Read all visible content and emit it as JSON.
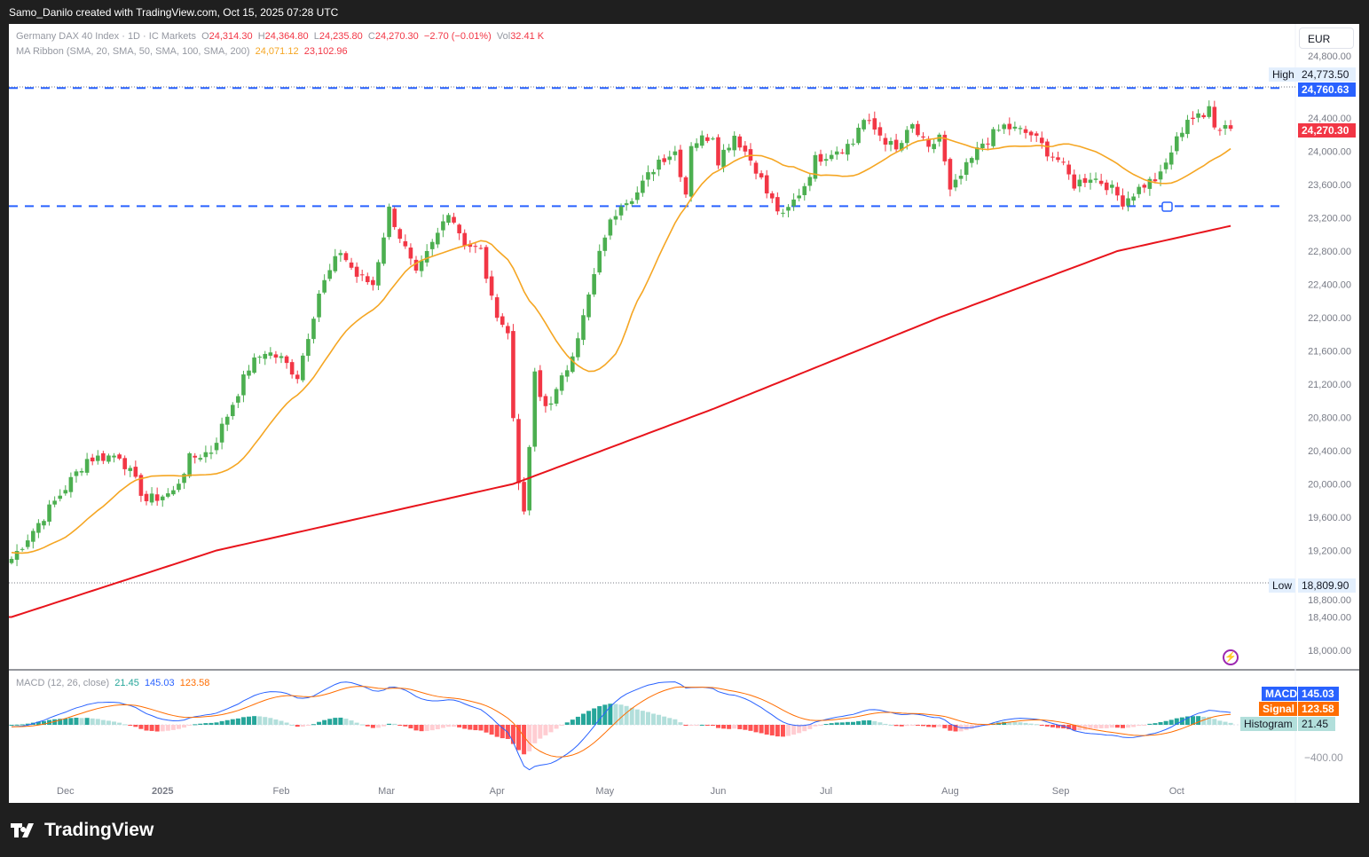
{
  "attribution": "Samo_Danilo created with TradingView.com, Oct 15, 2025 07:28 UTC",
  "brand": "TradingView",
  "currency_button": "EUR",
  "legend": {
    "symbol": "Germany DAX 40 Index · 1D · IC Markets",
    "o_label": "O",
    "o": "24,314.30",
    "h_label": "H",
    "h": "24,364.80",
    "l_label": "L",
    "l": "24,235.80",
    "c_label": "C",
    "c": "24,270.30",
    "change": "−2.70 (−0.01%)",
    "vol_label": "Vol",
    "vol": "32.41 K",
    "ma_label": "MA Ribbon (SMA, 20, SMA, 50, SMA, 100, SMA, 200)",
    "ma20": "24,071.12",
    "ma200": "23,102.96",
    "macd_label": "MACD (12, 26, close)",
    "macd_hist": "21.45",
    "macd_val": "145.03",
    "macd_signal": "123.58"
  },
  "price_tags": {
    "high_label": "High",
    "high": "24,773.50",
    "level": "24,760.63",
    "last": "24,270.30",
    "low_label": "Low",
    "low": "18,809.90",
    "macd_label": "MACD",
    "macd": "145.03",
    "signal_label": "Signal",
    "signal": "123.58",
    "hist_label": "Histogram",
    "hist": "21.45",
    "macd_axis": "−400.00"
  },
  "colors": {
    "up": "#4caf50",
    "down": "#f23645",
    "ma20": "#f5a623",
    "ma200": "#e8141c",
    "level": "#2962ff",
    "macd": "#2962ff",
    "signal": "#ff6d00"
  },
  "chart_data": {
    "type": "candlestick",
    "title": "Germany DAX 40 Index · 1D · IC Markets",
    "ylim": [
      17800,
      24900
    ],
    "y_ticks": [
      "24,800.00",
      "24,400.00",
      "24,000.00",
      "23,600.00",
      "23,200.00",
      "22,800.00",
      "22,400.00",
      "22,000.00",
      "21,600.00",
      "21,200.00",
      "20,800.00",
      "20,400.00",
      "20,000.00",
      "19,600.00",
      "19,200.00",
      "18,800.00",
      "18,400.00",
      "18,000.00"
    ],
    "y_tick_values": [
      24800,
      24400,
      24000,
      23600,
      23200,
      22800,
      22400,
      22000,
      21600,
      21200,
      20800,
      20400,
      20000,
      19600,
      19200,
      18800,
      18400,
      18000
    ],
    "x_ticks": [
      {
        "label": "Dec",
        "day": 10
      },
      {
        "label": "2025",
        "day": 28
      },
      {
        "label": "Feb",
        "day": 50
      },
      {
        "label": "Mar",
        "day": 69.5
      },
      {
        "label": "Apr",
        "day": 90
      },
      {
        "label": "May",
        "day": 110
      },
      {
        "label": "Jun",
        "day": 131
      },
      {
        "label": "Jul",
        "day": 151
      },
      {
        "label": "Aug",
        "day": 174
      },
      {
        "label": "Sep",
        "day": 194.5
      },
      {
        "label": "Oct",
        "day": 216
      }
    ],
    "close_path": [
      [
        0,
        19100
      ],
      [
        14,
        20300
      ],
      [
        20,
        20350
      ],
      [
        25,
        19800
      ],
      [
        30,
        19900
      ],
      [
        33,
        20300
      ],
      [
        37,
        20400
      ],
      [
        44,
        21400
      ],
      [
        47,
        21600
      ],
      [
        50,
        21500
      ],
      [
        53,
        21300
      ],
      [
        57,
        22300
      ],
      [
        61,
        22800
      ],
      [
        64,
        22500
      ],
      [
        67,
        22400
      ],
      [
        70,
        23300
      ],
      [
        75,
        22500
      ],
      [
        79,
        23000
      ],
      [
        81,
        23300
      ],
      [
        84,
        22900
      ],
      [
        87,
        22800
      ],
      [
        89,
        22200
      ],
      [
        92,
        21800
      ],
      [
        93.5,
        20300
      ],
      [
        95,
        19600
      ],
      [
        97,
        21300
      ],
      [
        98.5,
        20900
      ],
      [
        101,
        21100
      ],
      [
        103,
        21400
      ],
      [
        106,
        22000
      ],
      [
        108,
        22500
      ],
      [
        110,
        23000
      ],
      [
        113,
        23400
      ],
      [
        116,
        23500
      ],
      [
        120,
        23900
      ],
      [
        123,
        24000
      ],
      [
        125,
        23500
      ],
      [
        126,
        24100
      ],
      [
        130,
        24200
      ],
      [
        131,
        23900
      ],
      [
        134,
        24200
      ],
      [
        138,
        23800
      ],
      [
        140,
        23500
      ],
      [
        143,
        23200
      ],
      [
        147,
        23600
      ],
      [
        149,
        23900
      ],
      [
        152,
        24000
      ],
      [
        156,
        24100
      ],
      [
        157.5,
        24400
      ],
      [
        161,
        24200
      ],
      [
        164,
        24000
      ],
      [
        167,
        24300
      ],
      [
        170,
        24000
      ],
      [
        172,
        24200
      ],
      [
        174,
        23500
      ],
      [
        177,
        23800
      ],
      [
        180,
        24100
      ],
      [
        184,
        24300
      ],
      [
        189,
        24200
      ],
      [
        192,
        24000
      ],
      [
        194,
        23900
      ],
      [
        197,
        23600
      ],
      [
        200,
        23700
      ],
      [
        203,
        23600
      ],
      [
        206,
        23400
      ],
      [
        210,
        23600
      ],
      [
        213,
        23700
      ],
      [
        215,
        24000
      ],
      [
        218,
        24400
      ],
      [
        221,
        24400
      ],
      [
        222,
        24600
      ],
      [
        223.5,
        24200
      ],
      [
        225,
        24350
      ],
      [
        226,
        24270.3
      ]
    ],
    "sma200_path": [
      [
        0,
        18400
      ],
      [
        38,
        19200
      ],
      [
        93,
        20000
      ],
      [
        130,
        20900
      ],
      [
        172,
        22000
      ],
      [
        205,
        22800
      ],
      [
        226,
        23103
      ]
    ],
    "levels": [
      24760.63,
      23340
    ],
    "high": 24773.5,
    "low": 18809.9,
    "macd_ylim": [
      -500,
      550
    ]
  }
}
